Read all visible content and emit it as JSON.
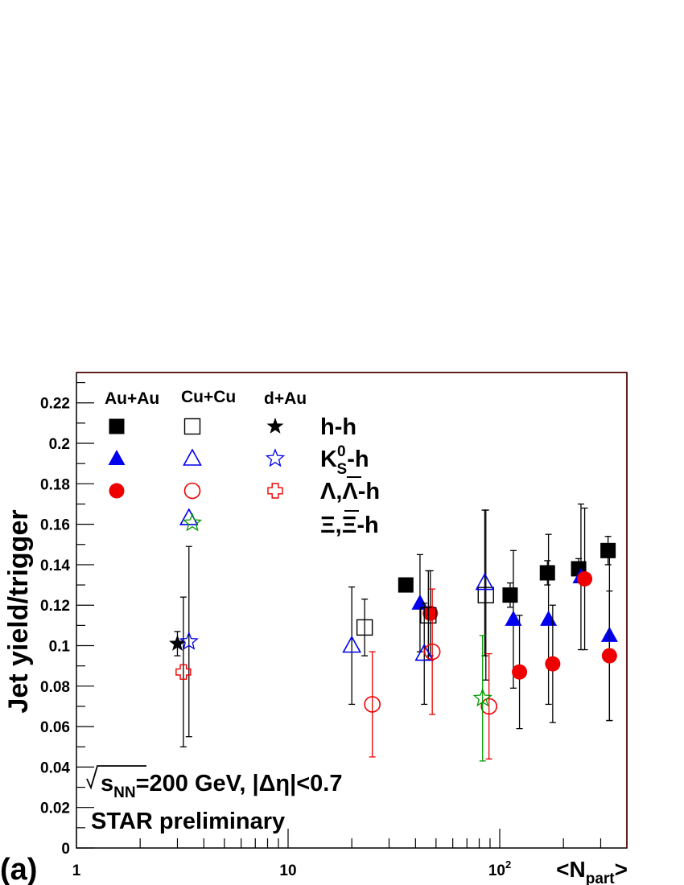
{
  "chart_data": {
    "type": "scatter",
    "panel_label": "(a)",
    "xlabel": "<N",
    "xlabel_sub": "part",
    "xlabel_end": ">",
    "ylabel": "Jet yield/trigger",
    "x_scale": "log",
    "xlim": [
      1,
      320
    ],
    "ylim": [
      0,
      0.235
    ],
    "grid": false,
    "x_tick_labels": [
      {
        "value": 1,
        "base": "1",
        "exp": ""
      },
      {
        "value": 10,
        "base": "10",
        "exp": ""
      },
      {
        "value": 100,
        "base": "10",
        "exp": "2"
      }
    ],
    "y_ticks": [
      0,
      0.02,
      0.04,
      0.06,
      0.08,
      0.1,
      0.12,
      0.14,
      0.16,
      0.18,
      0.2,
      0.22
    ],
    "y_tick_labels": [
      "0",
      "0.02",
      "0.04",
      "0.06",
      "0.08",
      "0.1",
      "0.12",
      "0.14",
      "0.16",
      "0.18",
      "0.2",
      "0.22"
    ],
    "legend": {
      "columns": [
        "Au+Au",
        "Cu+Cu",
        "d+Au"
      ],
      "rows": [
        {
          "label": "h-h"
        },
        {
          "label": "K",
          "sup": "0",
          "sub": "S",
          "tail": "-h"
        },
        {
          "label": "Λ,Λ-h",
          "overline_index": 2
        },
        {
          "label": "Ξ,Ξ-h",
          "overline_index": 2
        }
      ]
    },
    "annotations": {
      "energy_text": "s",
      "energy_sub": "NN",
      "energy_tail": "=200 GeV, |Δη|<0.7",
      "experiment": "STAR preliminary"
    },
    "colors": {
      "black": "#000000",
      "blue": "#0000ee",
      "red": "#ee0000",
      "green": "#009900"
    },
    "series": [
      {
        "name": "Au+Au h-h",
        "marker": "square",
        "filled": true,
        "color": "#000000",
        "err_color": "#000000",
        "points": [
          {
            "x": 36,
            "y": 0.13,
            "err": 0.0
          },
          {
            "x": 112,
            "y": 0.125,
            "err": 0.006
          },
          {
            "x": 168,
            "y": 0.136,
            "err": 0.006
          },
          {
            "x": 236,
            "y": 0.138,
            "err": 0.005
          },
          {
            "x": 325,
            "y": 0.147,
            "err": 0.007
          }
        ]
      },
      {
        "name": "Au+Au K0S-h",
        "marker": "triangle",
        "filled": true,
        "color": "#0000ee",
        "err_color": "#000000",
        "points": [
          {
            "x": 42,
            "y": 0.121,
            "err": 0.024
          },
          {
            "x": 116,
            "y": 0.113,
            "err": 0.034
          },
          {
            "x": 170,
            "y": 0.113,
            "err": 0.042
          },
          {
            "x": 242,
            "y": 0.134,
            "err": 0.036
          },
          {
            "x": 330,
            "y": 0.105,
            "err": 0.042
          }
        ]
      },
      {
        "name": "Au+Au Λ-h",
        "marker": "circle",
        "filled": true,
        "color": "#ee0000",
        "err_color": "#000000",
        "points": [
          {
            "x": 47,
            "y": 0.116,
            "err": 0.021
          },
          {
            "x": 124,
            "y": 0.087,
            "err": 0.028
          },
          {
            "x": 178,
            "y": 0.091,
            "err": 0.029
          },
          {
            "x": 252,
            "y": 0.133,
            "err": 0.035
          },
          {
            "x": 330,
            "y": 0.095,
            "err": 0.032
          }
        ]
      },
      {
        "name": "Cu+Cu h-h",
        "marker": "square",
        "filled": false,
        "color": "#000000",
        "err_color": "#000000",
        "points": [
          {
            "x": 23,
            "y": 0.109,
            "err": 0.014
          },
          {
            "x": 46,
            "y": 0.115,
            "err": 0.022
          },
          {
            "x": 86,
            "y": 0.125,
            "err": 0.042
          }
        ]
      },
      {
        "name": "Cu+Cu K0S-h",
        "marker": "triangle",
        "filled": false,
        "color": "#0000ee",
        "err_color": "#000000",
        "points": [
          {
            "x": 3.4,
            "y": 0.163,
            "err": 0.0
          },
          {
            "x": 20,
            "y": 0.1,
            "err": 0.029
          },
          {
            "x": 44,
            "y": 0.096,
            "err": 0.025
          },
          {
            "x": 85,
            "y": 0.131,
            "err": 0.036
          }
        ]
      },
      {
        "name": "Cu+Cu Λ-h",
        "marker": "circle",
        "filled": false,
        "color": "#ee0000",
        "err_color": "#ee0000",
        "points": [
          {
            "x": 25,
            "y": 0.071,
            "err": 0.026
          },
          {
            "x": 48,
            "y": 0.097,
            "err": 0.031
          },
          {
            "x": 89,
            "y": 0.07,
            "err": 0.026
          }
        ]
      },
      {
        "name": "Cu+Cu Ξ-h",
        "marker": "star",
        "filled": false,
        "color": "#009900",
        "err_color": "#009900",
        "points": [
          {
            "x": 83,
            "y": 0.074,
            "err": 0.031
          }
        ]
      },
      {
        "name": "d+Au h-h",
        "marker": "star",
        "filled": true,
        "color": "#000000",
        "err_color": "#000000",
        "points": [
          {
            "x": 3.0,
            "y": 0.101,
            "err": 0.006
          }
        ]
      },
      {
        "name": "d+Au K0S-h",
        "marker": "star",
        "filled": false,
        "color": "#0000ee",
        "err_color": "#000000",
        "points": [
          {
            "x": 3.4,
            "y": 0.102,
            "err": 0.047
          }
        ]
      },
      {
        "name": "d+Au Λ-h",
        "marker": "cross",
        "filled": false,
        "color": "#ee0000",
        "err_color": "#000000",
        "points": [
          {
            "x": 3.2,
            "y": 0.087,
            "err": 0.037
          }
        ]
      }
    ]
  }
}
